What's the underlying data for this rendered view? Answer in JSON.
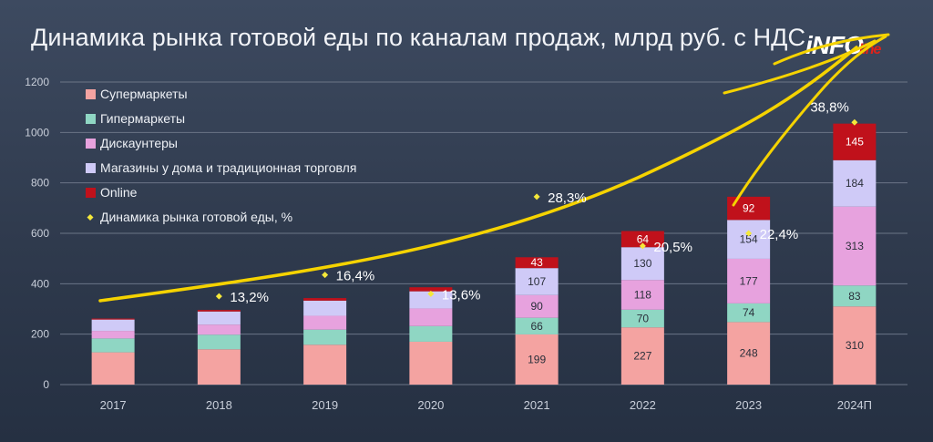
{
  "title": "Динамика рынка готовой еды по каналам продаж, млрд руб. с НДС",
  "logo": {
    "main": "iNFO",
    "sub": "line"
  },
  "chart_data": {
    "type": "bar",
    "stacked": true,
    "title": "Динамика рынка готовой еды по каналам продаж, млрд руб. с НДС",
    "categories": [
      "2017",
      "2018",
      "2019",
      "2020",
      "2021",
      "2022",
      "2023",
      "2024П"
    ],
    "ylim": [
      0,
      1200
    ],
    "yticks": [
      0,
      200,
      400,
      600,
      800,
      1000,
      1200
    ],
    "grid": true,
    "legend_position": "top-left",
    "series": [
      {
        "name": "Супермаркеты",
        "color": "#f4a3a1",
        "values": [
          128,
          140,
          158,
          170,
          199,
          227,
          248,
          310
        ],
        "labels": [
          "",
          "",
          "",
          "",
          "199",
          "227",
          "248",
          "310"
        ]
      },
      {
        "name": "Гипермаркеты",
        "color": "#8fd6c3",
        "values": [
          55,
          58,
          60,
          62,
          66,
          70,
          74,
          83
        ],
        "labels": [
          "",
          "",
          "",
          "",
          "66",
          "70",
          "74",
          "83"
        ]
      },
      {
        "name": "Дискаунтеры",
        "color": "#e7a2de",
        "values": [
          30,
          40,
          55,
          70,
          90,
          118,
          177,
          313
        ],
        "labels": [
          "",
          "",
          "",
          "",
          "90",
          "118",
          "177",
          "313"
        ]
      },
      {
        "name": "Магазины у дома и традиционная торговля",
        "color": "#cfcaf7",
        "values": [
          45,
          52,
          60,
          68,
          107,
          130,
          154,
          184
        ],
        "labels": [
          "",
          "",
          "",
          "",
          "107",
          "130",
          "154",
          "184"
        ]
      },
      {
        "name": "Online",
        "color": "#c0111b",
        "values": [
          4,
          6,
          10,
          16,
          43,
          64,
          92,
          145
        ],
        "labels": [
          "",
          "",
          "",
          "",
          "43",
          "64",
          "92",
          "145"
        ]
      }
    ],
    "growth_series": {
      "name": "Динамика рынка готовой еды, %",
      "color": "#f5e83a",
      "points": [
        {
          "category": "2018",
          "y": 350,
          "label": "13,2%"
        },
        {
          "category": "2019",
          "y": 435,
          "label": "16,4%"
        },
        {
          "category": "2020",
          "y": 360,
          "label": "13,6%"
        },
        {
          "category": "2021",
          "y": 745,
          "label": "28,3%"
        },
        {
          "category": "2022",
          "y": 550,
          "label": "20,5%"
        },
        {
          "category": "2023",
          "y": 600,
          "label": "22,4%"
        },
        {
          "category": "2024П",
          "y": 1040,
          "label": "38,8%"
        }
      ]
    },
    "annotation": {
      "type": "hand-drawn trend curve",
      "color": "#f5d300"
    }
  }
}
